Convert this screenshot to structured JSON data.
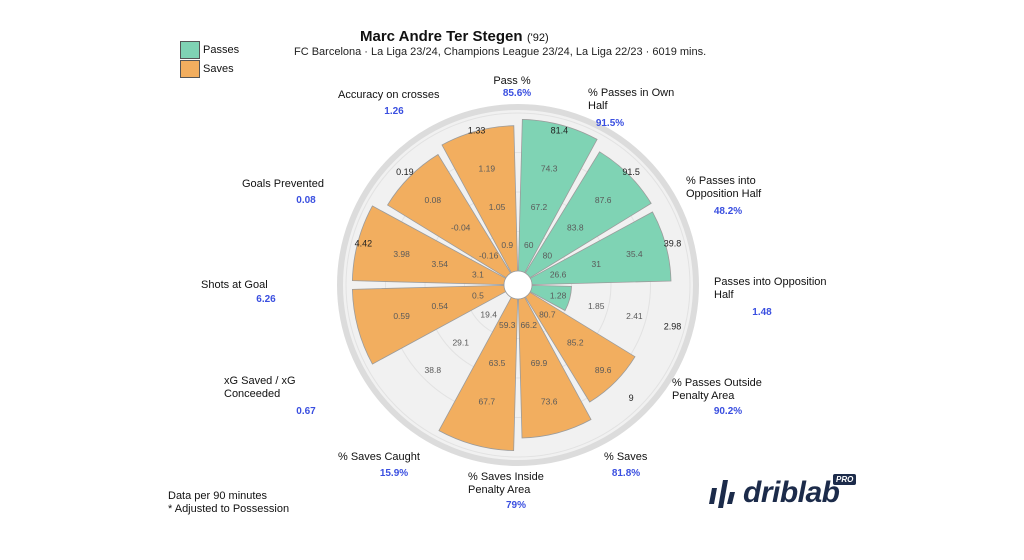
{
  "title": "Marc Andre Ter Stegen",
  "title_year": "('92)",
  "subtitle": "FC Barcelona · La Liga 23/24, Champions League 23/24, La Liga 22/23 · 6019 mins.",
  "legend": [
    {
      "label": "Passes",
      "color": "#7fd3b4"
    },
    {
      "label": "Saves",
      "color": "#f2ae5f"
    }
  ],
  "footnote_lines": [
    "Data per 90 minutes",
    "* Adjusted to Possession"
  ],
  "brand": {
    "name": "driblab",
    "badge": "PRO"
  },
  "chart_data": {
    "type": "radar-bar (pizza)",
    "title": "Marc Andre Ter Stegen",
    "series": [
      {
        "name": "Passes",
        "color": "#7fd3b4"
      },
      {
        "name": "Saves",
        "color": "#f2ae5f"
      }
    ],
    "metrics": [
      {
        "label": "Pass %",
        "value": "85.6%",
        "group": "Passes",
        "level": 0.96,
        "rings": [
          "60",
          "67.2",
          "74.3",
          "81.4"
        ]
      },
      {
        "label": "% Passes in Own Half",
        "value": "91.5%",
        "group": "Passes",
        "level": 0.9,
        "rings": [
          "80",
          "83.8",
          "87.6",
          "91.5"
        ]
      },
      {
        "label": "% Passes into Opposition Half",
        "value": "48.2%",
        "group": "Passes",
        "level": 0.88,
        "rings": [
          "26.6",
          "31",
          "35.4",
          "39.8"
        ]
      },
      {
        "label": "Passes into Opposition Half",
        "value": "1.48",
        "group": "Passes",
        "level": 0.25,
        "rings": [
          "1.28",
          "1.85",
          "2.41",
          "2.98"
        ]
      },
      {
        "label": "% Passes Outside Penalty Area",
        "value": "90.2%",
        "group": "Saves",
        "level": 0.78,
        "rings": [
          "80.7",
          "85.2",
          "89.6",
          "9"
        ]
      },
      {
        "label": "% Saves",
        "value": "81.8%",
        "group": "Saves",
        "level": 0.88,
        "rings": [
          "66.2",
          "69.9",
          "73.6",
          ""
        ]
      },
      {
        "label": "% Saves Inside Penalty Area",
        "value": "79%",
        "group": "Saves",
        "level": 0.96,
        "rings": [
          "59.3",
          "63.5",
          "67.7",
          ""
        ]
      },
      {
        "label": "% Saves Caught",
        "value": "15.9%",
        "group": "Saves",
        "level": 0.0,
        "rings": [
          "19.4",
          "29.1",
          "38.8",
          ""
        ]
      },
      {
        "label": "xG Saved / xG Conceeded",
        "value": "0.67",
        "group": "Saves",
        "level": 0.96,
        "rings": [
          "0.5",
          "0.54",
          "0.59",
          ""
        ]
      },
      {
        "label": "Shots at Goal",
        "value": "6.26",
        "group": "Saves",
        "level": 0.96,
        "rings": [
          "3.1",
          "3.54",
          "3.98",
          "4.42"
        ]
      },
      {
        "label": "Goals Prevented",
        "value": "0.08",
        "group": "Saves",
        "level": 0.88,
        "rings": [
          "-0.16",
          "-0.04",
          "0.08",
          "0.19"
        ]
      },
      {
        "label": "Accuracy on crosses",
        "value": "1.26",
        "group": "Saves",
        "level": 0.92,
        "rings": [
          "0.9",
          "1.05",
          "1.19",
          "1.33"
        ]
      }
    ]
  }
}
